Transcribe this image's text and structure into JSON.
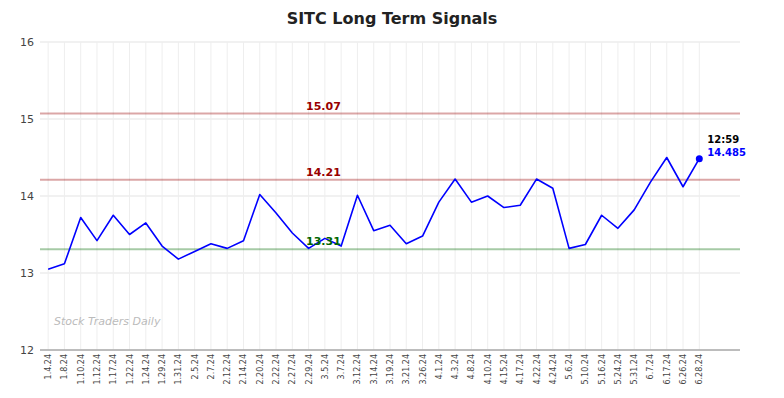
{
  "chart_data": {
    "type": "line",
    "title": "SITC Long Term Signals",
    "watermark": "Stock Traders Daily",
    "categories": [
      "1.4.24",
      "1.8.24",
      "1.10.24",
      "1.12.24",
      "1.17.24",
      "1.22.24",
      "1.24.24",
      "1.29.24",
      "1.31.24",
      "2.5.24",
      "2.7.24",
      "2.12.24",
      "2.14.24",
      "2.20.24",
      "2.22.24",
      "2.27.24",
      "2.29.24",
      "3.5.24",
      "3.7.24",
      "3.12.24",
      "3.14.24",
      "3.19.24",
      "3.21.24",
      "3.26.24",
      "4.1.24",
      "4.3.24",
      "4.8.24",
      "4.10.24",
      "4.15.24",
      "4.17.24",
      "4.22.24",
      "4.24.24",
      "5.6.24",
      "5.10.24",
      "5.16.24",
      "5.24.24",
      "5.31.24",
      "6.7.24",
      "6.17.24",
      "6.26.24",
      "6.28.24"
    ],
    "values": [
      13.05,
      13.12,
      13.72,
      13.42,
      13.75,
      13.5,
      13.65,
      13.35,
      13.18,
      13.28,
      13.38,
      13.32,
      13.42,
      14.02,
      13.78,
      13.52,
      13.32,
      13.45,
      13.35,
      14.01,
      13.55,
      13.62,
      13.38,
      13.48,
      13.92,
      14.22,
      13.92,
      14.0,
      13.85,
      13.88,
      14.22,
      14.1,
      13.32,
      13.37,
      13.75,
      13.58,
      13.82,
      14.18,
      14.5,
      14.12,
      14.485
    ],
    "color": "blue",
    "hlines": [
      {
        "value": 15.07,
        "color": "#990000"
      },
      {
        "value": 14.21,
        "color": "#990000"
      },
      {
        "value": 13.31,
        "color": "#006600"
      }
    ],
    "annotations": [
      {
        "x": "6.28.24",
        "y": 14.485,
        "text": "12:59"
      }
    ],
    "ylim": [
      12,
      16
    ],
    "yticks": [
      12,
      13,
      14,
      15,
      16
    ],
    "grid": true
  }
}
